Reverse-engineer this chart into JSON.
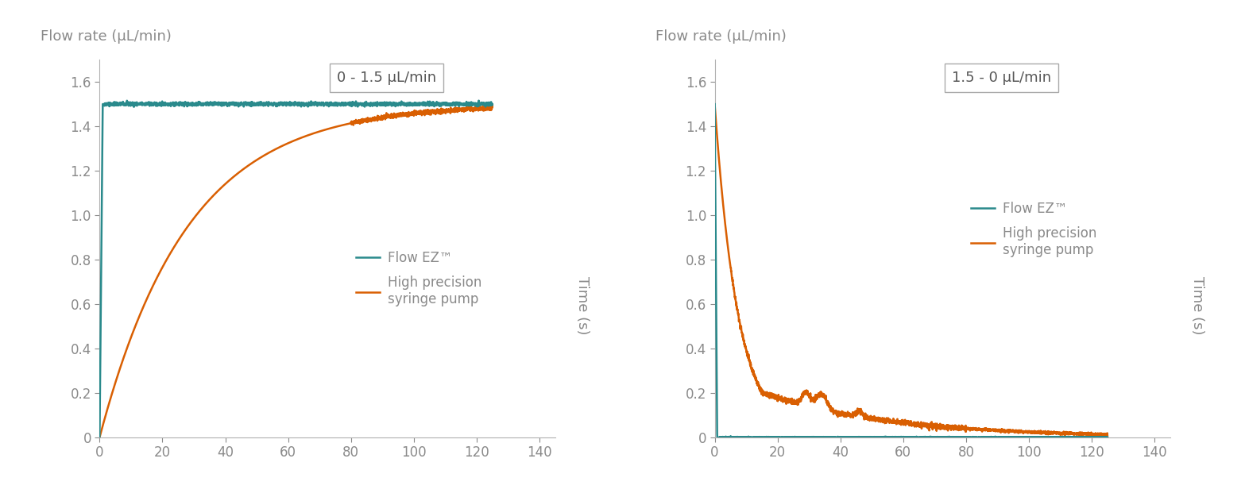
{
  "background_color": "#ffffff",
  "text_color": "#8a8a8a",
  "teal_color": "#2a8a8c",
  "orange_color": "#d95f02",
  "ylabel": "Flow rate (μL/min)",
  "xlabel": "Time (s)",
  "ylim": [
    0,
    1.7
  ],
  "xlim": [
    0,
    145
  ],
  "yticks": [
    0,
    0.2,
    0.4,
    0.6,
    0.8,
    1.0,
    1.2,
    1.4,
    1.6
  ],
  "xticks": [
    0,
    20,
    40,
    60,
    80,
    100,
    120,
    140
  ],
  "plot1_title": "0 - 1.5 μL/min",
  "plot2_title": "1.5 - 0 μL/min",
  "legend_line1": "Flow EZ™",
  "legend_line2": "High precision\nsyringe pump",
  "title_fontsize": 13,
  "label_fontsize": 13,
  "tick_fontsize": 12,
  "legend_fontsize": 12,
  "linewidth": 1.8
}
